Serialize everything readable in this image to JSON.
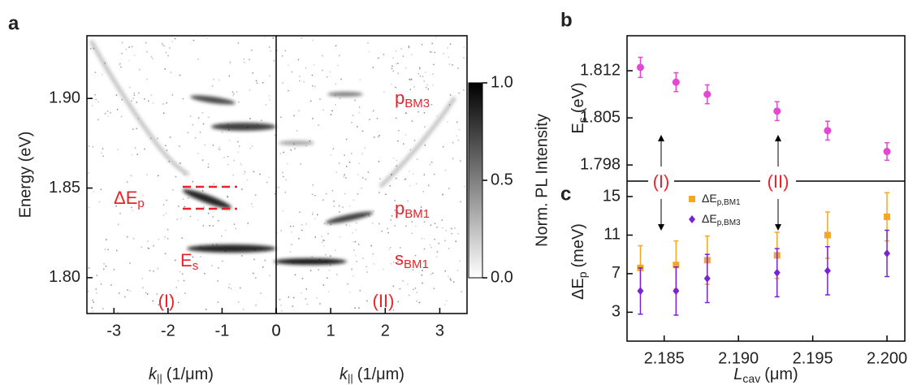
{
  "chart_data": [
    {
      "type": "heatmap",
      "panel_label": "a",
      "ylabel": "Energy (eV)",
      "xlabel": {
        "symbol": "k",
        "sub": "||",
        "unit": "(1/μm)"
      },
      "xlim": [
        -3.5,
        0
      ],
      "xticks": [
        -3,
        -2,
        -1,
        0
      ],
      "ylim": [
        1.78,
        1.935
      ],
      "yticks": [
        {
          "value": 1.8,
          "label": "1.80"
        },
        1.85,
        {
          "value": 1.9,
          "label": "1.90"
        }
      ],
      "annotations": [
        {
          "text": "ΔE",
          "sub": "p"
        },
        {
          "text": "E",
          "sub": "s"
        },
        {
          "text": "(I)"
        }
      ],
      "colorbar": {
        "label": "Norm. PL Intensity",
        "lim": [
          0,
          1
        ],
        "ticks": [
          {
            "value": 0,
            "label": "0.0"
          },
          {
            "value": 0.5,
            "label": "0.5"
          },
          {
            "value": 1,
            "label": "1.0"
          }
        ]
      }
    },
    {
      "type": "heatmap",
      "xlabel": {
        "symbol": "k",
        "sub": "||",
        "unit": "(1/μm)"
      },
      "xlim": [
        0,
        3.5
      ],
      "xticks": [
        0,
        1,
        2,
        3
      ],
      "annotations": [
        {
          "text": "p",
          "sub": "BM3"
        },
        {
          "text": "p",
          "sub": "BM1"
        },
        {
          "text": "s",
          "sub": "BM1"
        },
        {
          "text": "(II)"
        }
      ]
    },
    {
      "type": "scatter",
      "panel_label": "b",
      "ylabel": {
        "symbol": "E",
        "sub": "s",
        "unit": "(eV)"
      },
      "xlim": [
        2.1825,
        2.2012
      ],
      "ylim": [
        1.7956,
        1.8172
      ],
      "yticks": [
        1.798,
        1.805,
        1.812
      ],
      "series": [
        {
          "color": "#e448d2",
          "marker": "circle",
          "x": [
            2.1834,
            2.1858,
            2.1879,
            2.1926,
            2.196,
            2.2
          ],
          "values": [
            1.8125,
            1.8103,
            1.8085,
            1.806,
            1.8031,
            1.8
          ],
          "errors": [
            0.0015,
            0.0014,
            0.0014,
            0.0014,
            0.0014,
            0.0013
          ]
        }
      ],
      "annotations": [
        {
          "text": "(I)"
        },
        {
          "text": "(II)"
        }
      ]
    },
    {
      "type": "scatter",
      "panel_label": "c",
      "ylabel": {
        "symbol": "ΔE",
        "sub": "p",
        "unit": "(meV)"
      },
      "xlabel": {
        "symbol": "L",
        "sub": "cav",
        "unit": "(μm)"
      },
      "xlim": [
        2.1825,
        2.2012
      ],
      "ylim": [
        0,
        16.6
      ],
      "xticks": [
        2.185,
        {
          "value": 2.19,
          "label": "2.190"
        },
        2.195,
        {
          "value": 2.2,
          "label": "2.200"
        }
      ],
      "yticks": [
        3,
        7,
        11,
        15
      ],
      "series": [
        {
          "name": "ΔE",
          "name_sub": "p,BM1",
          "color": "#f5a623",
          "marker": "square",
          "x": [
            2.1834,
            2.1858,
            2.1879,
            2.1926,
            2.196,
            2.2
          ],
          "values": [
            7.6,
            7.9,
            8.4,
            8.9,
            11,
            12.9
          ],
          "errors": [
            2.3,
            2.5,
            2.5,
            2.4,
            2.4,
            2.5
          ]
        },
        {
          "name": "ΔE",
          "name_sub": "p,BM3",
          "color": "#7b22d8",
          "marker": "diamond",
          "x": [
            2.1834,
            2.1858,
            2.1879,
            2.1926,
            2.196,
            2.2
          ],
          "values": [
            5.2,
            5.2,
            6.5,
            7.1,
            7.3,
            9.1
          ],
          "errors": [
            2.4,
            2.5,
            2.5,
            2.5,
            2.5,
            2.4
          ]
        }
      ]
    }
  ]
}
